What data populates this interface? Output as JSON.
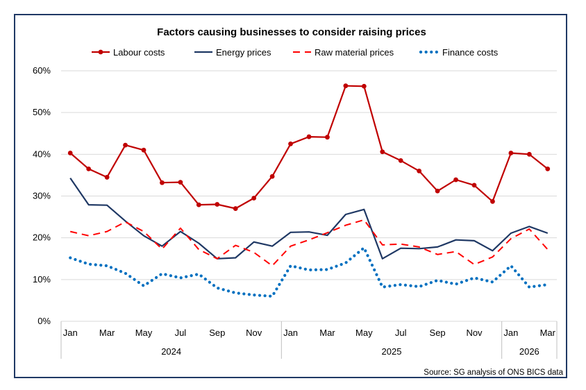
{
  "chart_data": {
    "type": "line",
    "title": "Factors causing businesses to consider raising prices",
    "source": "Source: SG analysis of ONS BICS data",
    "x_month_ticks": [
      "Jan",
      "Mar",
      "May",
      "Jul",
      "Sep",
      "Nov",
      "Jan",
      "Mar",
      "May",
      "Jul",
      "Sep",
      "Nov",
      "Jan",
      "Mar"
    ],
    "x_year_groups": [
      {
        "label": "2024"
      },
      {
        "label": "2025"
      },
      {
        "label": "2026"
      }
    ],
    "x_periods": [
      "Jan 2024",
      "Feb 2024",
      "Mar 2024",
      "Apr 2024",
      "May 2024",
      "Jun 2024",
      "Jul 2024",
      "Aug 2024",
      "Sep 2024",
      "Oct 2024",
      "Nov 2024",
      "Dec 2024",
      "Jan 2025",
      "Feb 2025",
      "Mar 2025",
      "Apr 2025",
      "May 2025",
      "Jun 2025",
      "Jul 2025",
      "Aug 2025",
      "Sep 2025",
      "Oct 2025",
      "Nov 2025",
      "Dec 2025",
      "Jan 2026",
      "Feb 2026",
      "Mar 2026"
    ],
    "y_ticks": [
      "0%",
      "10%",
      "20%",
      "30%",
      "40%",
      "50%",
      "60%"
    ],
    "ylim": [
      0,
      60
    ],
    "grid": "horizontal",
    "legend_position": "top",
    "series": [
      {
        "name": "Labour costs",
        "color": "#c00000",
        "style": "solid-markers",
        "values": [
          40.3,
          36.5,
          34.5,
          42.2,
          41.0,
          33.2,
          33.3,
          27.9,
          28.0,
          27.0,
          29.5,
          34.7,
          42.5,
          44.2,
          44.1,
          56.4,
          56.3,
          40.6,
          38.5,
          36.0,
          31.2,
          33.9,
          32.6,
          28.7,
          40.3,
          40.0,
          36.5
        ]
      },
      {
        "name": "Energy prices",
        "color": "#1f3864",
        "style": "solid",
        "values": [
          34.3,
          27.9,
          27.8,
          24.0,
          20.5,
          18.0,
          21.5,
          18.7,
          15.0,
          15.2,
          19.0,
          18.0,
          21.3,
          21.4,
          20.6,
          25.6,
          26.8,
          15.0,
          17.5,
          17.4,
          17.8,
          19.5,
          19.3,
          16.9,
          21.1,
          22.7,
          21.1
        ]
      },
      {
        "name": "Raw material prices",
        "color": "#ff0000",
        "style": "dashed",
        "values": [
          21.5,
          20.5,
          21.5,
          23.8,
          21.5,
          17.3,
          22.3,
          17.2,
          15.0,
          18.2,
          16.5,
          13.3,
          18.0,
          19.5,
          21.2,
          23.0,
          24.3,
          18.3,
          18.5,
          17.8,
          16.0,
          16.7,
          13.6,
          15.4,
          19.8,
          22.1,
          17.2
        ]
      },
      {
        "name": "Finance costs",
        "color": "#0070c0",
        "style": "dotted",
        "values": [
          15.2,
          13.7,
          13.3,
          11.5,
          8.5,
          11.4,
          10.4,
          11.3,
          8.0,
          6.8,
          6.3,
          6.0,
          13.3,
          12.3,
          12.4,
          14.0,
          17.6,
          8.2,
          8.8,
          8.3,
          9.8,
          8.9,
          10.4,
          9.4,
          13.3,
          8.2,
          8.8
        ]
      }
    ]
  }
}
